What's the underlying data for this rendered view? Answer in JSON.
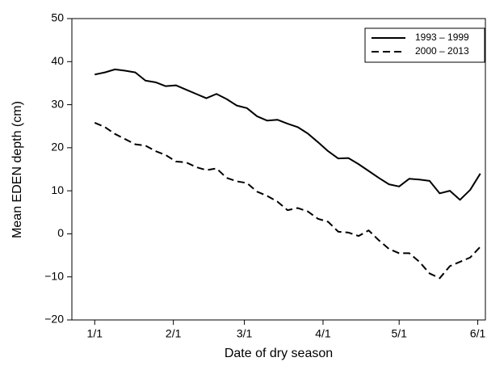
{
  "chart_data": {
    "type": "line",
    "x_label": "Date of dry season",
    "y_label": "Mean EDEN depth (cm)",
    "x": [
      0,
      4,
      8,
      12,
      16,
      20,
      24,
      28,
      32,
      36,
      40,
      44,
      48,
      52,
      56,
      60,
      64,
      68,
      72,
      76,
      80,
      84,
      88,
      92,
      96,
      100,
      104,
      108,
      112,
      116,
      120,
      124,
      128,
      132,
      136,
      140,
      144,
      148,
      152
    ],
    "series": [
      {
        "name": "1993 – 1999",
        "color": "#000000",
        "style": "solid",
        "values": [
          37,
          37.5,
          38.2,
          37.9,
          37.5,
          35.6,
          35.2,
          34.3,
          34.5,
          33.5,
          32.5,
          31.5,
          32.5,
          31.3,
          29.8,
          29.2,
          27.3,
          26.3,
          26.5,
          25.6,
          24.8,
          23.3,
          21.3,
          19.2,
          17.5,
          17.6,
          16.2,
          14.6,
          13,
          11.5,
          11,
          12.8,
          12.6,
          12.3,
          9.4,
          10,
          7.9,
          10.2,
          14
        ]
      },
      {
        "name": "2000 – 2013",
        "color": "#000000",
        "style": "dashed",
        "values": [
          25.8,
          24.8,
          23.2,
          22,
          20.8,
          20.5,
          19.2,
          18.3,
          16.8,
          16.6,
          15.5,
          14.8,
          15.2,
          13,
          12.2,
          11.8,
          9.8,
          8.8,
          7.5,
          5.5,
          6,
          5.2,
          3.5,
          2.8,
          0.5,
          0.3,
          -0.5,
          0.8,
          -1.5,
          -3.5,
          -4.5,
          -4.5,
          -6.5,
          -9.2,
          -10.3,
          -7.5,
          -6.5,
          -5.5,
          -3
        ]
      }
    ],
    "xlim": [
      -9,
      154
    ],
    "xticks": [
      {
        "value": 0,
        "label": "1/1"
      },
      {
        "value": 31,
        "label": "2/1"
      },
      {
        "value": 59,
        "label": "3/1"
      },
      {
        "value": 90,
        "label": "4/1"
      },
      {
        "value": 120,
        "label": "5/1"
      },
      {
        "value": 151,
        "label": "6/1"
      }
    ],
    "ylim": [
      -20,
      50
    ],
    "yticks": [
      {
        "value": -20,
        "label": "−20"
      },
      {
        "value": -10,
        "label": "−10"
      },
      0,
      10,
      20,
      30,
      40,
      50
    ],
    "grid": false,
    "legend": "upper right"
  }
}
